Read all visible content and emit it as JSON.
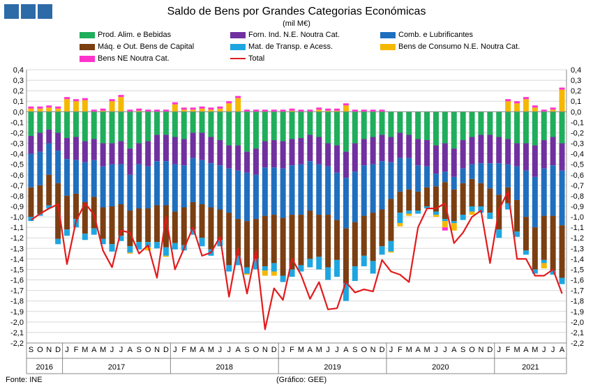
{
  "header": {
    "title": "Saldo de Bens por Grandes Categorias Económicas",
    "subtitle": "(mil M€)"
  },
  "footer": {
    "source": "Fonte: INE",
    "credit": "(Gráfico: GEE)"
  },
  "chart_data": {
    "type": "bar",
    "stacked": true,
    "ylim": [
      -2.2,
      0.4
    ],
    "ystep": 0.1,
    "grid": true,
    "legend_position": "top",
    "yaxis_dual": true,
    "categories": [
      "S",
      "O",
      "N",
      "D",
      "J",
      "F",
      "M",
      "A",
      "M",
      "J",
      "J",
      "A",
      "S",
      "O",
      "N",
      "D",
      "J",
      "F",
      "M",
      "A",
      "M",
      "J",
      "J",
      "A",
      "S",
      "O",
      "N",
      "D",
      "J",
      "F",
      "M",
      "A",
      "M",
      "J",
      "J",
      "A",
      "S",
      "O",
      "N",
      "D",
      "J",
      "F",
      "M",
      "A",
      "M",
      "J",
      "J",
      "A",
      "S",
      "O",
      "N",
      "D",
      "J",
      "F",
      "M",
      "A",
      "M",
      "J",
      "J",
      "A"
    ],
    "year_groups": [
      {
        "label": "2016",
        "start": 0,
        "count": 4
      },
      {
        "label": "2017",
        "start": 4,
        "count": 12
      },
      {
        "label": "2018",
        "start": 16,
        "count": 12
      },
      {
        "label": "2019",
        "start": 28,
        "count": 12
      },
      {
        "label": "2020",
        "start": 40,
        "count": 12
      },
      {
        "label": "2021",
        "start": 52,
        "count": 8
      }
    ],
    "series": [
      {
        "name": "Prod. Alim. e Bebidas",
        "color": "#1fae5b",
        "values": [
          -0.23,
          -0.2,
          -0.17,
          -0.2,
          -0.25,
          -0.24,
          -0.28,
          -0.26,
          -0.3,
          -0.3,
          -0.28,
          -0.35,
          -0.3,
          -0.28,
          -0.22,
          -0.22,
          -0.24,
          -0.26,
          -0.2,
          -0.2,
          -0.24,
          -0.27,
          -0.32,
          -0.32,
          -0.38,
          -0.35,
          -0.28,
          -0.27,
          -0.28,
          -0.26,
          -0.25,
          -0.22,
          -0.24,
          -0.3,
          -0.32,
          -0.38,
          -0.3,
          -0.26,
          -0.24,
          -0.22,
          -0.24,
          -0.2,
          -0.22,
          -0.26,
          -0.27,
          -0.32,
          -0.3,
          -0.35,
          -0.27,
          -0.24,
          -0.22,
          -0.22,
          -0.24,
          -0.26,
          -0.3,
          -0.3,
          -0.32,
          -0.27,
          -0.24,
          -0.3
        ]
      },
      {
        "name": "Forn. Ind. N.E. Noutra Cat.",
        "color": "#7030a0",
        "values": [
          -0.17,
          -0.18,
          -0.13,
          -0.17,
          -0.2,
          -0.22,
          -0.2,
          -0.2,
          -0.22,
          -0.2,
          -0.22,
          -0.25,
          -0.2,
          -0.24,
          -0.25,
          -0.25,
          -0.26,
          -0.25,
          -0.24,
          -0.26,
          -0.25,
          -0.24,
          -0.22,
          -0.24,
          -0.2,
          -0.25,
          -0.25,
          -0.26,
          -0.26,
          -0.25,
          -0.25,
          -0.25,
          -0.26,
          -0.22,
          -0.26,
          -0.25,
          -0.27,
          -0.25,
          -0.26,
          -0.25,
          -0.24,
          -0.24,
          -0.22,
          -0.25,
          -0.25,
          -0.27,
          -0.27,
          -0.27,
          -0.27,
          -0.26,
          -0.27,
          -0.27,
          -0.25,
          -0.24,
          -0.22,
          -0.26,
          -0.3,
          -0.27,
          -0.27,
          -0.26
        ]
      },
      {
        "name": "Comb. e Lubrificantes",
        "color": "#1f6fbf",
        "values": [
          -0.32,
          -0.32,
          -0.3,
          -0.31,
          -0.35,
          -0.32,
          -0.38,
          -0.35,
          -0.39,
          -0.4,
          -0.38,
          -0.34,
          -0.42,
          -0.4,
          -0.42,
          -0.42,
          -0.45,
          -0.4,
          -0.42,
          -0.42,
          -0.42,
          -0.42,
          -0.42,
          -0.46,
          -0.46,
          -0.42,
          -0.46,
          -0.45,
          -0.47,
          -0.47,
          -0.48,
          -0.47,
          -0.48,
          -0.46,
          -0.45,
          -0.48,
          -0.48,
          -0.48,
          -0.46,
          -0.46,
          -0.35,
          -0.32,
          -0.3,
          -0.25,
          -0.2,
          -0.12,
          -0.1,
          -0.12,
          -0.14,
          -0.14,
          -0.19,
          -0.24,
          -0.3,
          -0.22,
          -0.32,
          -0.44,
          -0.48,
          -0.45,
          -0.48,
          -0.52
        ]
      },
      {
        "name": "Máq. e Out. Bens de Capital",
        "color": "#7b3f12",
        "values": [
          -0.28,
          -0.27,
          -0.29,
          -0.53,
          -0.32,
          -0.24,
          -0.3,
          -0.3,
          -0.3,
          -0.36,
          -0.3,
          -0.34,
          -0.32,
          -0.32,
          -0.35,
          -0.4,
          -0.3,
          -0.36,
          -0.26,
          -0.32,
          -0.4,
          -0.29,
          -0.5,
          -0.35,
          -0.44,
          -0.38,
          -0.48,
          -0.46,
          -0.55,
          -0.52,
          -0.48,
          -0.46,
          -0.4,
          -0.5,
          -0.38,
          -0.52,
          -0.42,
          -0.38,
          -0.46,
          -0.35,
          -0.4,
          -0.2,
          -0.2,
          -0.18,
          -0.18,
          -0.24,
          -0.35,
          -0.3,
          -0.3,
          -0.26,
          -0.22,
          -0.23,
          -0.33,
          -0.15,
          -0.3,
          -0.32,
          -0.4,
          -0.42,
          -0.52,
          -0.5
        ]
      },
      {
        "name": "Mat. de Transp. e Acess.",
        "color": "#1ea6e0",
        "values": [
          -0.04,
          -0.02,
          -0.03,
          -0.05,
          -0.06,
          -0.08,
          -0.06,
          -0.06,
          -0.05,
          -0.07,
          -0.05,
          -0.06,
          -0.07,
          -0.05,
          -0.06,
          -0.08,
          -0.06,
          -0.05,
          -0.05,
          -0.08,
          -0.06,
          -0.06,
          -0.06,
          -0.09,
          -0.06,
          -0.1,
          -0.04,
          -0.08,
          -0.06,
          -0.07,
          -0.06,
          -0.08,
          -0.12,
          -0.12,
          -0.16,
          -0.17,
          -0.14,
          -0.1,
          -0.12,
          -0.08,
          -0.1,
          -0.1,
          -0.03,
          -0.03,
          -0.02,
          -0.03,
          -0.02,
          -0.02,
          -0.05,
          -0.05,
          -0.06,
          -0.06,
          -0.08,
          -0.06,
          -0.05,
          -0.04,
          -0.04,
          -0.03,
          -0.04,
          -0.06
        ]
      },
      {
        "name": "Bens de Consumo N.E. Noutra Cat.",
        "color": "#f5b800",
        "values": [
          0.03,
          0.03,
          0.04,
          0.03,
          0.12,
          0.1,
          0.11,
          0.0,
          0.01,
          0.1,
          0.14,
          -0.01,
          0.01,
          -0.03,
          0.0,
          -0.01,
          0.07,
          0.02,
          0.02,
          0.03,
          0.02,
          0.03,
          0.08,
          0.13,
          -0.01,
          0.0,
          -0.05,
          -0.04,
          0.0,
          0.01,
          0.0,
          0.0,
          0.02,
          0.01,
          0.01,
          0.06,
          0.0,
          0.0,
          0.0,
          0.0,
          -0.01,
          -0.03,
          -0.02,
          0.0,
          0.0,
          -0.02,
          -0.06,
          -0.07,
          0.0,
          -0.03,
          0.0,
          0.0,
          0.0,
          0.1,
          0.08,
          0.12,
          0.04,
          -0.05,
          0.02,
          0.21
        ]
      },
      {
        "name": "Bens NE Noutra Cat.",
        "color": "#ff33cc",
        "values": [
          0.02,
          0.02,
          0.02,
          0.02,
          0.02,
          0.02,
          0.02,
          0.02,
          0.02,
          0.02,
          0.02,
          0.02,
          0.02,
          0.02,
          0.02,
          0.02,
          0.02,
          0.02,
          0.02,
          0.02,
          0.02,
          0.02,
          0.02,
          0.02,
          0.02,
          0.02,
          0.02,
          0.02,
          0.02,
          0.02,
          0.02,
          0.02,
          0.02,
          0.02,
          0.02,
          0.02,
          0.02,
          0.02,
          0.02,
          0.02,
          0.0,
          0.0,
          0.0,
          0.0,
          0.0,
          0.0,
          -0.03,
          0.0,
          0.0,
          0.0,
          0.0,
          0.0,
          0.0,
          0.02,
          0.02,
          0.02,
          0.02,
          0.02,
          0.02,
          0.02
        ]
      },
      {
        "name": "Total",
        "color": "#e31a1c",
        "type": "line",
        "values": [
          -1.03,
          -0.97,
          -0.92,
          -0.88,
          -1.45,
          -1.04,
          -0.87,
          -0.98,
          -1.32,
          -1.48,
          -1.13,
          -1.15,
          -1.35,
          -1.27,
          -1.58,
          -1.0,
          -1.5,
          -1.3,
          -1.1,
          -1.37,
          -1.34,
          -1.19,
          -1.76,
          -1.3,
          -1.73,
          -1.32,
          -2.07,
          -1.68,
          -1.79,
          -1.4,
          -1.55,
          -1.78,
          -1.62,
          -1.88,
          -1.87,
          -1.62,
          -1.72,
          -1.69,
          -1.71,
          -1.41,
          -1.52,
          -1.55,
          -1.62,
          -1.1,
          -0.92,
          -0.92,
          -0.87,
          -1.25,
          -1.15,
          -1.0,
          -0.94,
          -1.44,
          -0.93,
          -0.76,
          -1.4,
          -1.4,
          -1.56,
          -1.56,
          -1.5,
          -1.73
        ]
      }
    ]
  }
}
